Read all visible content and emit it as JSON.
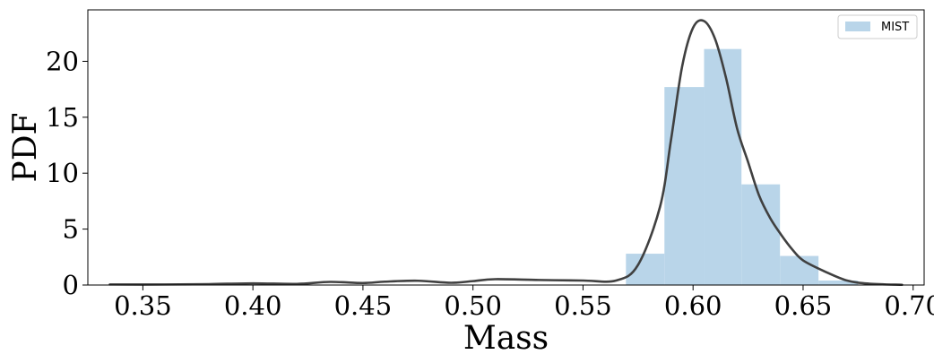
{
  "chart_data": {
    "type": "bar",
    "title": "",
    "xlabel": "Mass",
    "ylabel": "PDF",
    "xlim": [
      0.325,
      0.705
    ],
    "ylim": [
      0,
      24.6
    ],
    "xticks": [
      0.35,
      0.4,
      0.45,
      0.5,
      0.55,
      0.6,
      0.65,
      0.7
    ],
    "xtick_labels": [
      "0.35",
      "0.40",
      "0.45",
      "0.50",
      "0.55",
      "0.60",
      "0.65",
      "0.70"
    ],
    "yticks": [
      0,
      5,
      10,
      15,
      20
    ],
    "ytick_labels": [
      "0",
      "5",
      "10",
      "15",
      "20"
    ],
    "grid": false,
    "legend": {
      "position": "top-right",
      "entries": [
        "MIST"
      ]
    },
    "colors": {
      "histogram": "#b9d5e9",
      "kde": "#404040"
    },
    "series": [
      {
        "name": "MIST",
        "kind": "histogram",
        "bins": [
          {
            "x0": 0.5695,
            "x1": 0.587,
            "value": 2.8
          },
          {
            "x0": 0.587,
            "x1": 0.605,
            "value": 17.7
          },
          {
            "x0": 0.605,
            "x1": 0.622,
            "value": 21.1
          },
          {
            "x0": 0.622,
            "x1": 0.6395,
            "value": 9.0
          },
          {
            "x0": 0.6395,
            "x1": 0.657,
            "value": 2.6
          },
          {
            "x0": 0.657,
            "x1": 0.675,
            "value": 0.4
          }
        ]
      },
      {
        "kind": "kde",
        "x": [
          0.335,
          0.36,
          0.38,
          0.4,
          0.42,
          0.435,
          0.45,
          0.46,
          0.475,
          0.49,
          0.5,
          0.51,
          0.53,
          0.55,
          0.565,
          0.575,
          0.585,
          0.59,
          0.595,
          0.6,
          0.605,
          0.61,
          0.615,
          0.62,
          0.625,
          0.63,
          0.635,
          0.64,
          0.645,
          0.65,
          0.66,
          0.67,
          0.68,
          0.695
        ],
        "y": [
          0.05,
          0.05,
          0.08,
          0.15,
          0.1,
          0.28,
          0.18,
          0.3,
          0.38,
          0.2,
          0.35,
          0.52,
          0.45,
          0.4,
          0.4,
          1.8,
          7.0,
          13.0,
          19.5,
          23.0,
          23.6,
          22.0,
          18.5,
          14.0,
          11.0,
          8.0,
          6.0,
          4.5,
          3.2,
          2.2,
          1.2,
          0.4,
          0.12,
          0.02
        ]
      }
    ]
  }
}
